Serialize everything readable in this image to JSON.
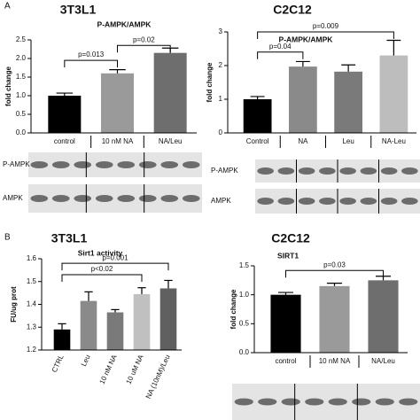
{
  "panels": [
    "A",
    "B"
  ],
  "chart_data": [
    {
      "type": "bar",
      "title": "3T3L1",
      "subtitle": "P-AMPK/AMPK",
      "ylabel": "fold change",
      "categories": [
        "control",
        "10 nM NA",
        "NA/Leu"
      ],
      "values": [
        1.0,
        1.6,
        2.15
      ],
      "errors": [
        0.07,
        0.1,
        0.13
      ],
      "colors": [
        "#000000",
        "#9a9a9a",
        "#6e6e6e"
      ],
      "ylim": [
        0,
        2.5
      ],
      "yticks": [
        {
          "value": 0,
          "label": "0.0"
        },
        {
          "value": 0.5,
          "label": "0.5"
        },
        {
          "value": 1,
          "label": "1.0"
        },
        {
          "value": 1.5,
          "label": "1.5"
        },
        {
          "value": 2,
          "label": "2.0"
        },
        {
          "value": 2.5,
          "label": "2.5"
        }
      ],
      "annotations": [
        {
          "text": "p=0.013",
          "between": [
            "control",
            "10 nM NA"
          ],
          "y": 1.95
        },
        {
          "text": "p=0.02",
          "between": [
            "10 nM NA",
            "NA/Leu"
          ],
          "y": 2.35
        }
      ],
      "blot_labels": [
        "P-AMPK",
        "AMPK"
      ]
    },
    {
      "type": "bar",
      "title": "C2C12",
      "subtitle": "P-AMPK/AMPK",
      "ylabel": "fold change",
      "categories": [
        "Control",
        "NA",
        "Leu",
        "NA-Leu"
      ],
      "values": [
        1.0,
        1.97,
        1.82,
        2.3
      ],
      "errors": [
        0.08,
        0.15,
        0.2,
        0.45
      ],
      "colors": [
        "#000000",
        "#8a8a8a",
        "#7a7a7a",
        "#bdbdbd"
      ],
      "ylim": [
        0,
        3
      ],
      "yticks": [
        0,
        1,
        2,
        3
      ],
      "annotations": [
        {
          "text": "p=0.04",
          "between": [
            "Control",
            "NA"
          ],
          "y": 2.4
        },
        {
          "text": "p=0.009",
          "between": [
            "Control",
            "NA-Leu"
          ],
          "y": 3.0
        }
      ],
      "blot_labels": [
        "P-AMPK",
        "AMPK"
      ]
    },
    {
      "type": "bar",
      "title": "3T3L1",
      "subtitle": "Sirt1 activity",
      "ylabel": "FU/ug prot",
      "categories": [
        "CTRL",
        "Leu",
        "10 nM NA",
        "10 uM NA",
        "NA (10nM)/Leu"
      ],
      "values": [
        1.29,
        1.415,
        1.365,
        1.445,
        1.47
      ],
      "errors": [
        0.025,
        0.04,
        0.012,
        0.028,
        0.035
      ],
      "colors": [
        "#000000",
        "#8a8a8a",
        "#7a7a7a",
        "#c0c0c0",
        "#606060"
      ],
      "ylim": [
        1.2,
        1.6
      ],
      "yticks": [
        1.2,
        1.3,
        1.4,
        1.5,
        1.6
      ],
      "annotations": [
        {
          "text": "p<0.02",
          "between": [
            "CTRL",
            "10 uM NA"
          ],
          "y": 1.53
        },
        {
          "text": "p=0.001",
          "between": [
            "CTRL",
            "NA (10nM)/Leu"
          ],
          "y": 1.58
        }
      ],
      "blot_labels": []
    },
    {
      "type": "bar",
      "title": "C2C12",
      "subtitle": "SIRT1",
      "ylabel": "fold change",
      "categories": [
        "control",
        "10 nM NA",
        "NA/Leu"
      ],
      "values": [
        1.0,
        1.15,
        1.25
      ],
      "errors": [
        0.04,
        0.05,
        0.07
      ],
      "colors": [
        "#000000",
        "#9a9a9a",
        "#6e6e6e"
      ],
      "ylim": [
        0,
        1.5
      ],
      "yticks": [
        {
          "value": 0,
          "label": "0.0"
        },
        {
          "value": 0.5,
          "label": "0.5"
        },
        {
          "value": 1,
          "label": "1.0"
        },
        {
          "value": 1.5,
          "label": "1.5"
        }
      ],
      "annotations": [
        {
          "text": "p=0.03",
          "between": [
            "control",
            "NA/Leu"
          ],
          "y": 1.42
        }
      ],
      "blot_labels": []
    }
  ]
}
